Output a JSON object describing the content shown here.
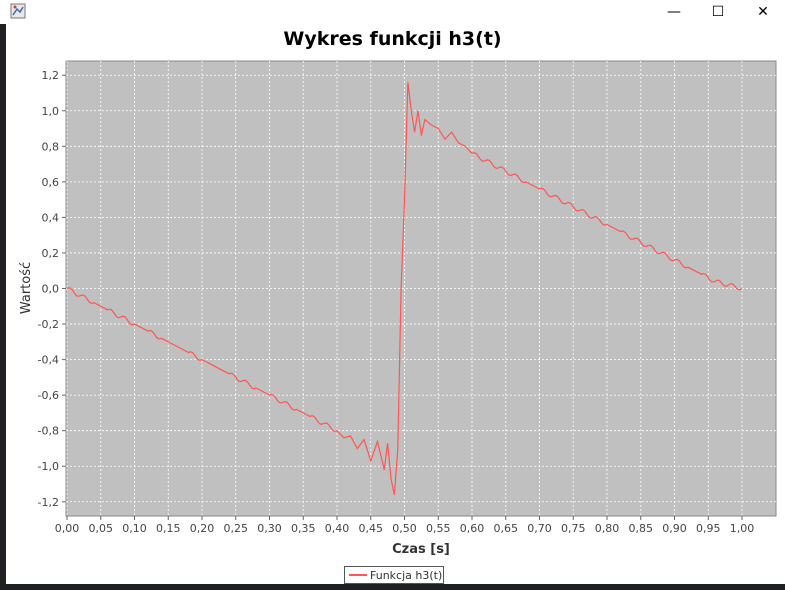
{
  "window": {
    "icon": "java-app-icon",
    "minimize_glyph": "—",
    "maximize_glyph": "☐",
    "close_glyph": "✕"
  },
  "chart_data": {
    "type": "line",
    "title": "Wykres funkcji h3(t)",
    "xlabel": "Czas [s]",
    "ylabel": "Wartość",
    "xlim": [
      0,
      1
    ],
    "ylim": [
      -1.28,
      1.28
    ],
    "x_ticks": [
      "0,00",
      "0,05",
      "0,10",
      "0,15",
      "0,20",
      "0,25",
      "0,30",
      "0,35",
      "0,40",
      "0,45",
      "0,50",
      "0,55",
      "0,60",
      "0,65",
      "0,70",
      "0,75",
      "0,80",
      "0,85",
      "0,90",
      "0,95",
      "1,00"
    ],
    "y_ticks": [
      "1,2",
      "1,0",
      "0,8",
      "0,6",
      "0,4",
      "0,2",
      "0,0",
      "-0,2",
      "-0,4",
      "-0,6",
      "-0,8",
      "-1,0",
      "-1,2"
    ],
    "grid": true,
    "legend_placement": "bottom-center",
    "background_color": "#c0c0c0",
    "series": [
      {
        "name": "Funkcja h3(t)",
        "color": "#ff5555",
        "x": [
          0.0,
          0.02,
          0.04,
          0.06,
          0.08,
          0.1,
          0.12,
          0.14,
          0.16,
          0.18,
          0.2,
          0.22,
          0.24,
          0.26,
          0.28,
          0.3,
          0.32,
          0.34,
          0.36,
          0.38,
          0.4,
          0.41,
          0.42,
          0.43,
          0.44,
          0.45,
          0.46,
          0.47,
          0.475,
          0.48,
          0.485,
          0.49,
          0.495,
          0.5,
          0.505,
          0.51,
          0.515,
          0.52,
          0.525,
          0.53,
          0.54,
          0.55,
          0.56,
          0.57,
          0.58,
          0.59,
          0.6,
          0.62,
          0.64,
          0.66,
          0.68,
          0.7,
          0.72,
          0.74,
          0.76,
          0.78,
          0.8,
          0.82,
          0.84,
          0.86,
          0.88,
          0.9,
          0.92,
          0.94,
          0.96,
          0.98,
          1.0
        ],
        "values": [
          0.0,
          -0.04,
          -0.08,
          -0.12,
          -0.16,
          -0.2,
          -0.24,
          -0.28,
          -0.32,
          -0.36,
          -0.4,
          -0.44,
          -0.48,
          -0.52,
          -0.56,
          -0.6,
          -0.64,
          -0.68,
          -0.72,
          -0.76,
          -0.8,
          -0.84,
          -0.83,
          -0.9,
          -0.85,
          -0.97,
          -0.86,
          -1.02,
          -0.87,
          -1.07,
          -1.16,
          -0.9,
          0.0,
          0.5,
          1.16,
          1.0,
          0.88,
          1.0,
          0.86,
          0.95,
          0.92,
          0.9,
          0.84,
          0.88,
          0.82,
          0.8,
          0.76,
          0.72,
          0.68,
          0.64,
          0.6,
          0.56,
          0.52,
          0.48,
          0.44,
          0.4,
          0.36,
          0.32,
          0.28,
          0.24,
          0.2,
          0.16,
          0.12,
          0.08,
          0.04,
          0.02,
          0.0
        ]
      }
    ]
  }
}
